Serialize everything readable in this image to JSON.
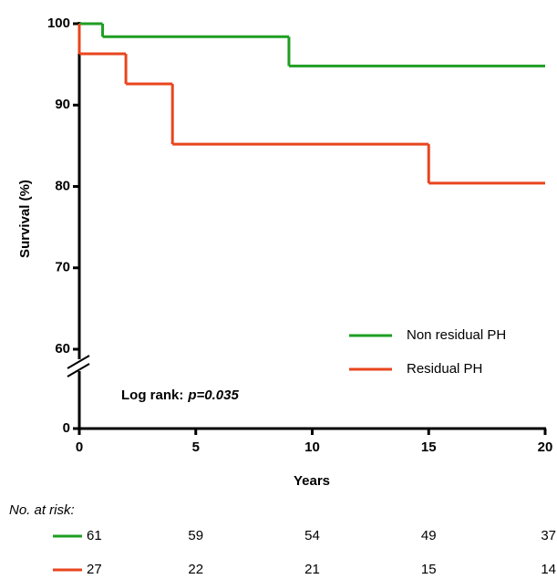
{
  "chart_data": {
    "type": "step",
    "y_label": "Survival (%)",
    "x_label": "Years",
    "xlim": [
      0,
      20
    ],
    "xticks": [
      0,
      5,
      10,
      15,
      20
    ],
    "ylim": [
      0,
      100
    ],
    "yticks": [
      0,
      60,
      70,
      80,
      90,
      100
    ],
    "axis_break": true,
    "series": [
      {
        "name": "Non residual PH",
        "color": "#1e9e22",
        "x": [
          0,
          1,
          9,
          20
        ],
        "values": [
          100,
          98.4,
          94.8,
          94.8
        ]
      },
      {
        "name": "Residual PH",
        "color": "#e8451e",
        "x": [
          0,
          0,
          2,
          4,
          15,
          20
        ],
        "values": [
          100,
          96.3,
          92.6,
          85.2,
          80.4,
          80.4
        ]
      }
    ],
    "legend": "lower right",
    "annotation": {
      "text": "Log rank:",
      "p": "p=0.035"
    },
    "risk_table": {
      "title": "No. at risk:",
      "rows": [
        [
          61,
          59,
          54,
          49,
          37
        ],
        [
          27,
          22,
          21,
          15,
          14
        ]
      ]
    }
  }
}
